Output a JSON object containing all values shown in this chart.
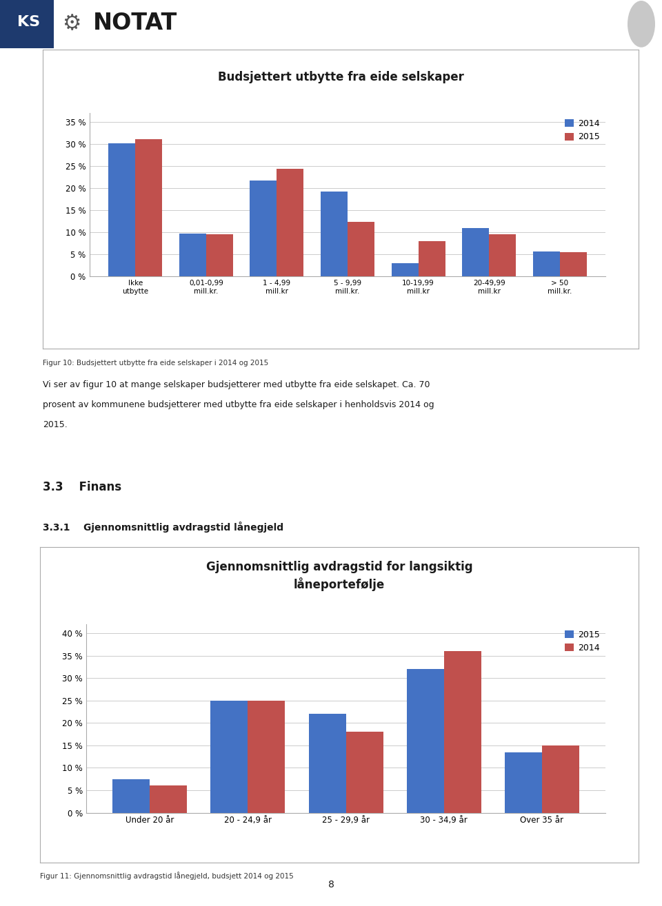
{
  "page_bg": "#ffffff",
  "header_bg": "#c8c8c8",
  "header_text": "NOTAT",
  "header_fontsize": 24,
  "chart1": {
    "title": "Budsjettert utbytte fra eide selskaper",
    "title_fontsize": 12,
    "categories": [
      "Ikke\nutbytte",
      "0,01-0,99\nmill.kr.",
      "1 - 4,99\nmill.kr",
      "5 - 9,99\nmill.kr.",
      "10-19,99\nmill.kr",
      "20-49,99\nmill.kr",
      "> 50\nmill.kr."
    ],
    "values_2014": [
      30.2,
      9.7,
      21.8,
      19.3,
      3.0,
      11.0,
      5.7
    ],
    "values_2015": [
      31.1,
      9.5,
      24.4,
      12.3,
      8.0,
      9.5,
      5.5
    ],
    "color_2014": "#4472c4",
    "color_2015": "#c0504d",
    "ylim": [
      0,
      37
    ],
    "yticks": [
      0,
      5,
      10,
      15,
      20,
      25,
      30,
      35
    ],
    "ytick_labels": [
      "0 %",
      "5 %",
      "10 %",
      "15 %",
      "20 %",
      "25 %",
      "30 %",
      "35 %"
    ],
    "legend_labels": [
      "2014",
      "2015"
    ],
    "figcaption": "Figur 10: Budsjettert utbytte fra eide selskaper i 2014 og 2015"
  },
  "text_paragraph_lines": [
    "Vi ser av figur 10 at mange selskaper budsjetterer med utbytte fra eide selskapet. Ca. 70",
    "prosent av kommunene budsjetterer med utbytte fra eide selskaper i henholdsvis 2014 og",
    "2015."
  ],
  "section_heading": "3.3    Finans",
  "subsection_heading": "3.3.1    Gjennomsnittlig avdragstid lånegjeld",
  "chart2": {
    "title_line1": "Gjennomsnittlig avdragstid for langsiktig",
    "title_line2": "låneportefølje",
    "title_fontsize": 12,
    "categories": [
      "Under 20 år",
      "20 - 24,9 år",
      "25 - 29,9 år",
      "30 - 34,9 år",
      "Over 35 år"
    ],
    "values_2015": [
      7.5,
      25.0,
      22.0,
      32.0,
      13.5
    ],
    "values_2014": [
      6.0,
      25.0,
      18.0,
      36.0,
      15.0
    ],
    "color_2015": "#4472c4",
    "color_2014": "#c0504d",
    "ylim": [
      0,
      42
    ],
    "yticks": [
      0,
      5,
      10,
      15,
      20,
      25,
      30,
      35,
      40
    ],
    "ytick_labels": [
      "0 %",
      "5 %",
      "10 %",
      "15 %",
      "20 %",
      "25 %",
      "30 %",
      "35 %",
      "40 %"
    ],
    "legend_labels": [
      "2015",
      "2014"
    ],
    "figcaption": "Figur 11: Gjennomsnittlig avdragstid lånegjeld, budsjett 2014 og 2015"
  },
  "page_number": "8",
  "ks_blue": "#1e3a6e",
  "ks_text": "KS",
  "gear_color": "#555555"
}
